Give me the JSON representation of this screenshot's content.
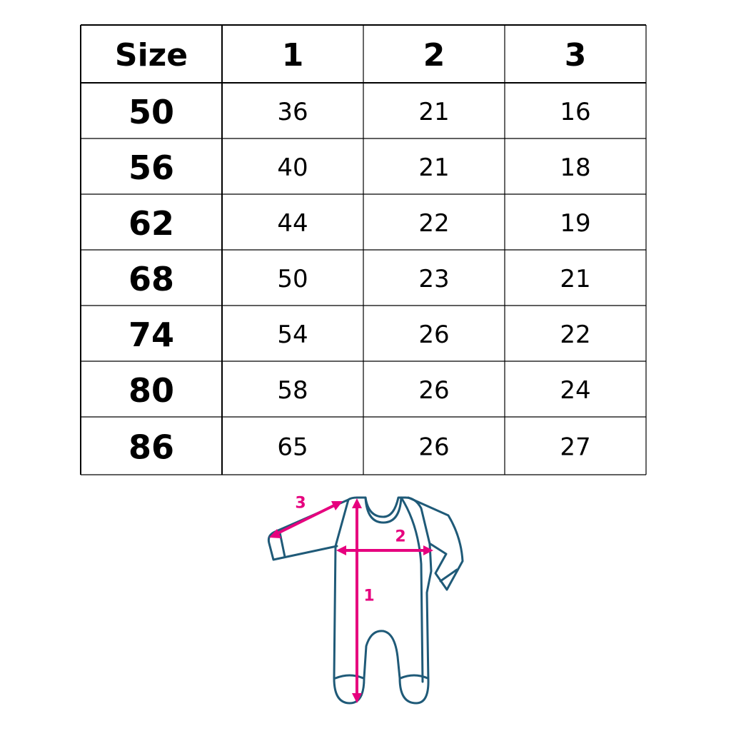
{
  "table": {
    "header": [
      "Size",
      "1",
      "2",
      "3"
    ],
    "rows": [
      [
        "50",
        "36",
        "21",
        "16"
      ],
      [
        "56",
        "40",
        "21",
        "18"
      ],
      [
        "62",
        "44",
        "22",
        "19"
      ],
      [
        "68",
        "50",
        "23",
        "21"
      ],
      [
        "74",
        "54",
        "26",
        "22"
      ],
      [
        "80",
        "58",
        "26",
        "24"
      ],
      [
        "86",
        "65",
        "26",
        "27"
      ]
    ]
  },
  "diagram": {
    "labels": [
      "1",
      "2",
      "3"
    ]
  }
}
